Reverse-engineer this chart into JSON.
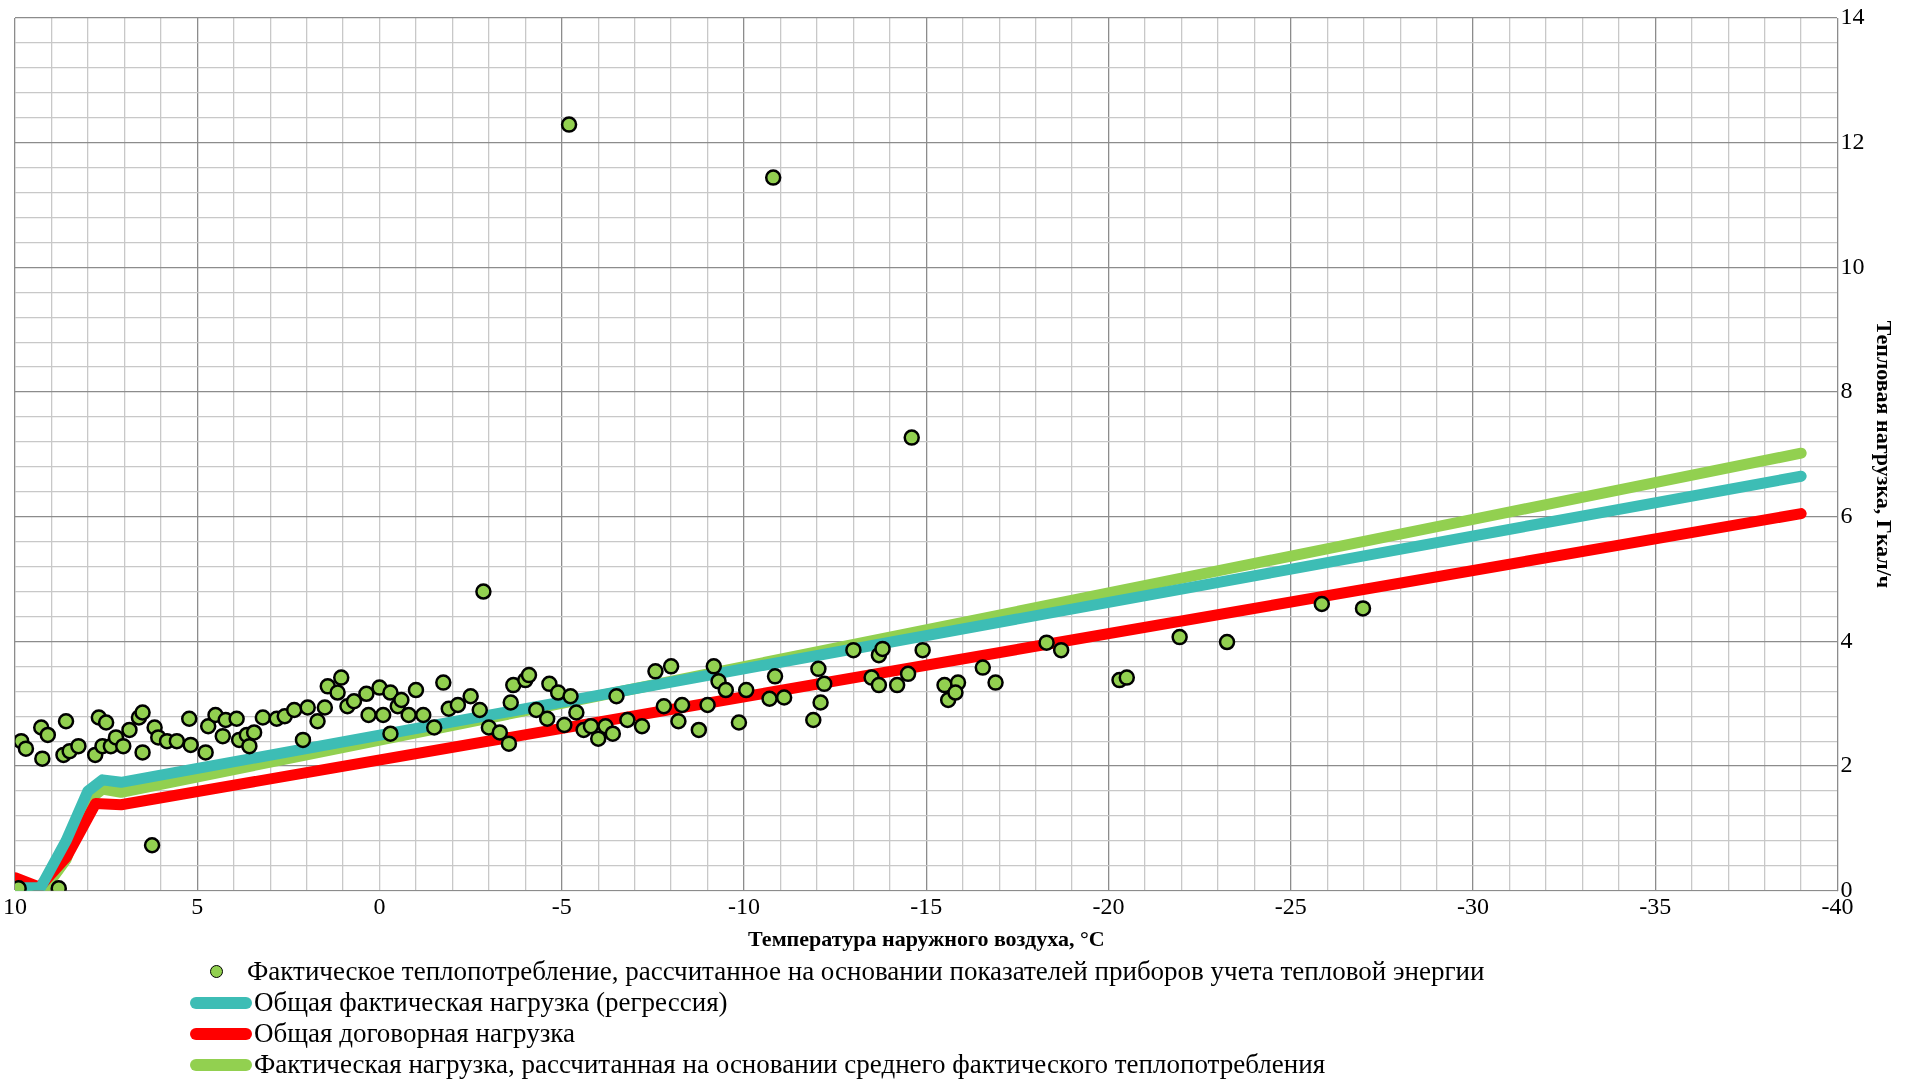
{
  "chart_data": {
    "type": "scatter",
    "xlabel": "Температура наружного воздуха, °С",
    "ylabel": "Тепловая нагрузка, Гкал/ч",
    "xlim": [
      10,
      -40
    ],
    "ylim": [
      0,
      14
    ],
    "xticks": [
      10,
      {
        "value": 9,
        "label": null
      },
      {
        "value": 8,
        "label": null
      },
      {
        "value": 7,
        "label": null
      },
      {
        "value": 6,
        "label": null
      },
      5,
      {
        "value": 4,
        "label": null
      },
      {
        "value": 3,
        "label": null
      },
      {
        "value": 2,
        "label": null
      },
      {
        "value": 1,
        "label": null
      },
      0,
      {
        "value": -1,
        "label": null
      },
      {
        "value": -2,
        "label": null
      },
      {
        "value": -3,
        "label": null
      },
      {
        "value": -4,
        "label": null
      },
      -5,
      {
        "value": -6,
        "label": null
      },
      {
        "value": -7,
        "label": null
      },
      {
        "value": -8,
        "label": null
      },
      {
        "value": -9,
        "label": null
      },
      -10,
      {
        "value": -11,
        "label": null
      },
      {
        "value": -12,
        "label": null
      },
      {
        "value": -13,
        "label": null
      },
      {
        "value": -14,
        "label": null
      },
      -15,
      {
        "value": -16,
        "label": null
      },
      {
        "value": -17,
        "label": null
      },
      {
        "value": -18,
        "label": null
      },
      {
        "value": -19,
        "label": null
      },
      -20,
      {
        "value": -21,
        "label": null
      },
      {
        "value": -22,
        "label": null
      },
      {
        "value": -23,
        "label": null
      },
      {
        "value": -24,
        "label": null
      },
      -25,
      {
        "value": -26,
        "label": null
      },
      {
        "value": -27,
        "label": null
      },
      {
        "value": -28,
        "label": null
      },
      {
        "value": -29,
        "label": null
      },
      -30,
      {
        "value": -31,
        "label": null
      },
      {
        "value": -32,
        "label": null
      },
      {
        "value": -33,
        "label": null
      },
      {
        "value": -34,
        "label": null
      },
      -35,
      {
        "value": -36,
        "label": null
      },
      {
        "value": -37,
        "label": null
      },
      {
        "value": -38,
        "label": null
      },
      {
        "value": -39,
        "label": null
      },
      -40
    ],
    "yticks": [
      0,
      {
        "value": 0.4,
        "label": null
      },
      {
        "value": 0.8,
        "label": null
      },
      {
        "value": 1.2,
        "label": null
      },
      {
        "value": 1.6,
        "label": null
      },
      2,
      {
        "value": 2.4,
        "label": null
      },
      {
        "value": 2.8,
        "label": null
      },
      {
        "value": 3.2,
        "label": null
      },
      {
        "value": 3.6,
        "label": null
      },
      4,
      {
        "value": 4.4,
        "label": null
      },
      {
        "value": 4.8,
        "label": null
      },
      {
        "value": 5.2,
        "label": null
      },
      {
        "value": 5.6,
        "label": null
      },
      6,
      {
        "value": 6.4,
        "label": null
      },
      {
        "value": 6.8,
        "label": null
      },
      {
        "value": 7.2,
        "label": null
      },
      {
        "value": 7.6,
        "label": null
      },
      8,
      {
        "value": 8.4,
        "label": null
      },
      {
        "value": 8.8,
        "label": null
      },
      {
        "value": 9.2,
        "label": null
      },
      {
        "value": 9.6,
        "label": null
      },
      10,
      {
        "value": 10.4,
        "label": null
      },
      {
        "value": 10.8,
        "label": null
      },
      {
        "value": 11.2,
        "label": null
      },
      {
        "value": 11.6,
        "label": null
      },
      12,
      {
        "value": 12.4,
        "label": null
      },
      {
        "value": 12.8,
        "label": null
      },
      {
        "value": 13.2,
        "label": null
      },
      {
        "value": 13.6,
        "label": null
      },
      14
    ],
    "grid": true,
    "legend": "bottom",
    "series": [
      {
        "name": "Фактическое теплопотребление, рассчитанное на основании показателей приборов учета тепловой энергии",
        "type": "scatter",
        "marker": "circle",
        "color": "#92d050",
        "x": [
          -5.2,
          -10.8,
          -14.6,
          -2.85,
          6.24,
          9.9,
          8.8,
          9.83,
          9.7,
          9.28,
          9.1,
          9.25,
          8.6,
          8.67,
          8.5,
          8.26,
          7.8,
          7.7,
          7.5,
          7.6,
          7.37,
          7.23,
          7.03,
          6.86,
          6.6,
          6.5,
          6.5,
          6.17,
          6.07,
          5.83,
          5.56,
          5.22,
          5.18,
          4.77,
          4.7,
          4.5,
          4.3,
          4.22,
          3.92,
          3.85,
          3.64,
          3.57,
          3.44,
          3.2,
          2.82,
          2.6,
          2.34,
          2.1,
          1.97,
          1.7,
          1.5,
          1.42,
          1.15,
          1.05,
          0.88,
          0.7,
          0.36,
          0.3,
          0.0,
          -0.1,
          -0.3,
          -0.3,
          -0.5,
          -0.6,
          -0.8,
          -1.0,
          -1.2,
          -1.5,
          -1.75,
          -1.9,
          -2.15,
          -2.5,
          -2.75,
          -3.0,
          -3.3,
          -3.55,
          -3.6,
          -3.67,
          -4.0,
          -4.1,
          -4.3,
          -4.6,
          -4.66,
          -4.9,
          -5.07,
          -5.24,
          -5.4,
          -5.6,
          -5.8,
          -6.0,
          -6.2,
          -6.4,
          -6.5,
          -6.8,
          -7.2,
          -7.57,
          -7.8,
          -8.0,
          -8.2,
          -8.3,
          -8.76,
          -9.0,
          -9.17,
          -9.3,
          -9.5,
          -9.86,
          -10.06,
          -10.7,
          -10.85,
          -11.1,
          -11.9,
          -12.1,
          -12.04,
          -12.2,
          -13.0,
          -13.5,
          -13.7,
          -13.7,
          -13.8,
          -14.2,
          -14.5,
          -14.9,
          -15.5,
          -15.6,
          -15.87,
          -15.8,
          -16.55,
          -16.9,
          -18.3,
          -18.7,
          -20.3,
          -20.5,
          -21.95,
          -23.25,
          -25.85,
          -26.98
        ],
        "values": [
          12.29,
          11.44,
          7.27,
          4.8,
          0.73,
          0.04,
          0.04,
          2.4,
          2.28,
          2.62,
          2.5,
          2.12,
          2.72,
          2.18,
          2.24,
          2.32,
          2.18,
          2.78,
          2.7,
          2.32,
          2.32,
          2.46,
          2.32,
          2.58,
          2.78,
          2.86,
          2.22,
          2.62,
          2.46,
          2.4,
          2.4,
          2.76,
          2.34,
          2.22,
          2.64,
          2.82,
          2.48,
          2.74,
          2.76,
          2.42,
          2.5,
          2.32,
          2.54,
          2.78,
          2.76,
          2.8,
          2.9,
          2.42,
          2.94,
          2.72,
          2.94,
          3.28,
          3.18,
          3.42,
          2.96,
          3.04,
          3.16,
          2.82,
          3.26,
          2.82,
          3.18,
          2.52,
          2.96,
          3.06,
          2.82,
          3.22,
          2.82,
          2.62,
          3.34,
          2.92,
          2.98,
          3.12,
          2.9,
          2.62,
          2.54,
          2.36,
          3.02,
          3.3,
          3.38,
          3.46,
          2.9,
          2.76,
          3.32,
          3.18,
          2.66,
          3.12,
          2.86,
          2.58,
          2.64,
          2.44,
          2.64,
          2.52,
          3.12,
          2.74,
          2.64,
          3.52,
          2.96,
          3.6,
          2.72,
          2.98,
          2.58,
          2.98,
          3.6,
          3.36,
          3.22,
          2.7,
          3.22,
          3.08,
          3.44,
          3.1,
          2.74,
          3.02,
          3.56,
          3.32,
          3.86,
          3.42,
          3.3,
          3.78,
          3.88,
          3.3,
          3.48,
          3.86,
          3.3,
          3.06,
          3.34,
          3.18,
          3.58,
          3.34,
          3.98,
          3.86,
          3.38,
          3.42,
          4.07,
          3.99,
          4.6,
          4.53
        ]
      },
      {
        "name": "Общая фактическая нагрузка (регрессия)",
        "type": "line",
        "marker": "none",
        "color": "#3dbdb5",
        "x": [
          10,
          9.3,
          8.6,
          8.0,
          7.6,
          7.09,
          -39
        ],
        "values": [
          0.05,
          0.05,
          0.8,
          1.6,
          1.78,
          1.74,
          6.65
        ]
      },
      {
        "name": "Общая договорная нагрузка",
        "type": "line",
        "marker": "none",
        "color": "#ff0000",
        "x": [
          10,
          9.33,
          8.58,
          7.79,
          7.09,
          -39
        ],
        "values": [
          0.21,
          0.06,
          0.55,
          1.4,
          1.38,
          6.05
        ]
      },
      {
        "name": "Фактическая нагрузка, рассчитанная на основании среднего фактического теплопотребления",
        "type": "line",
        "marker": "none",
        "color": "#92d050",
        "x": [
          10,
          9.2,
          8.6,
          8.0,
          7.6,
          7.09,
          -39
        ],
        "values": [
          0.02,
          0.02,
          0.5,
          1.45,
          1.63,
          1.58,
          7.02
        ]
      }
    ]
  }
}
